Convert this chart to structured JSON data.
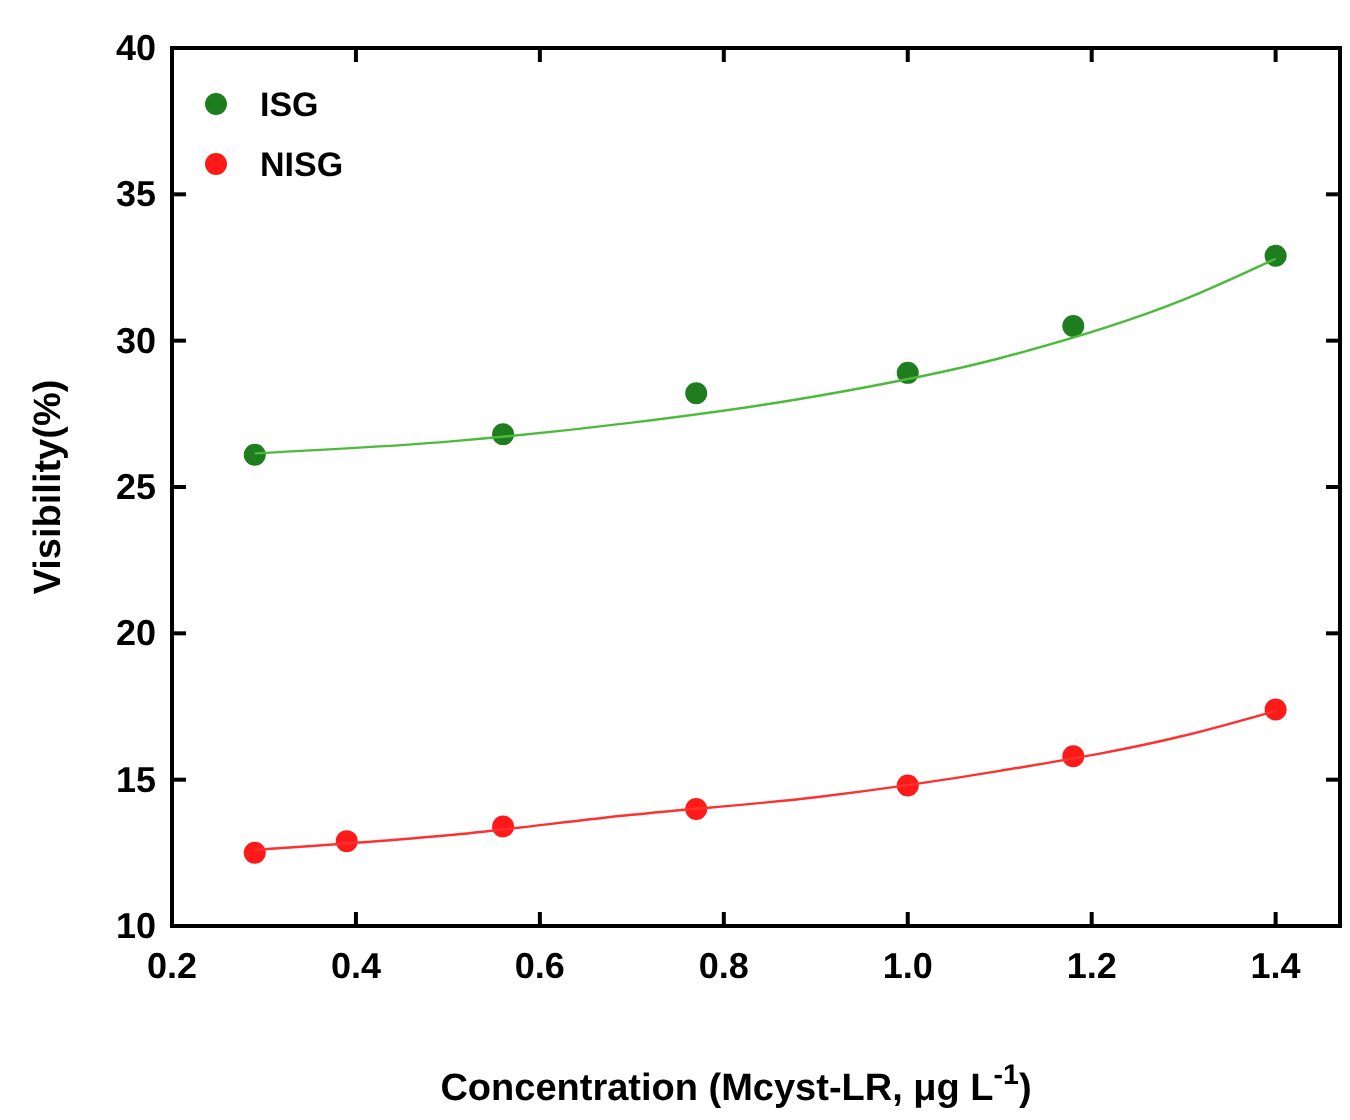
{
  "chart_data": {
    "type": "scatter",
    "xlabel": "Concentration (Mcyst-LR, μg L$^{-1}$)",
    "ylabel": "Visibility(%)",
    "xlim": [
      0.2,
      1.47
    ],
    "ylim": [
      10,
      40
    ],
    "xticks": [
      {
        "value": 0.2,
        "label": "0.2"
      },
      {
        "value": 0.4,
        "label": "0.4"
      },
      {
        "value": 0.6,
        "label": "0.6"
      },
      {
        "value": 0.8,
        "label": "0.8"
      },
      {
        "value": 1,
        "label": "1.0"
      },
      {
        "value": 1.2,
        "label": "1.2"
      },
      {
        "value": 1.4,
        "label": "1.4"
      }
    ],
    "yticks": [
      10,
      15,
      20,
      25,
      30,
      35,
      40
    ],
    "grid": false,
    "legend": "top left",
    "marker": "circle",
    "series": [
      {
        "name": "ISG",
        "color": "#1e7d1e",
        "x": [
          0.29,
          0.56,
          0.77,
          1.0,
          1.18,
          1.4
        ],
        "values": [
          26.1,
          26.8,
          28.2,
          28.9,
          30.5,
          32.9
        ]
      },
      {
        "name": "NISG",
        "color": "#ff1a1a",
        "x": [
          0.29,
          0.39,
          0.56,
          0.77,
          1.0,
          1.18,
          1.4
        ],
        "values": [
          12.5,
          12.9,
          13.4,
          14.0,
          14.8,
          15.8,
          17.4
        ]
      },
      {
        "type": "line",
        "color": "#4cbb3c",
        "marker": "none",
        "line_style": "solid",
        "x": [
          0.29,
          0.5,
          0.7,
          0.9,
          1.1,
          1.3,
          1.4
        ],
        "values": [
          26.15,
          26.55,
          27.2,
          28.1,
          29.4,
          31.4,
          32.8
        ]
      },
      {
        "type": "line",
        "color": "#ff3030",
        "marker": "none",
        "line_style": "solid",
        "x": [
          0.29,
          0.5,
          0.7,
          0.9,
          1.1,
          1.3,
          1.4
        ],
        "values": [
          12.6,
          13.1,
          13.8,
          14.4,
          15.3,
          16.5,
          17.35
        ]
      }
    ]
  }
}
